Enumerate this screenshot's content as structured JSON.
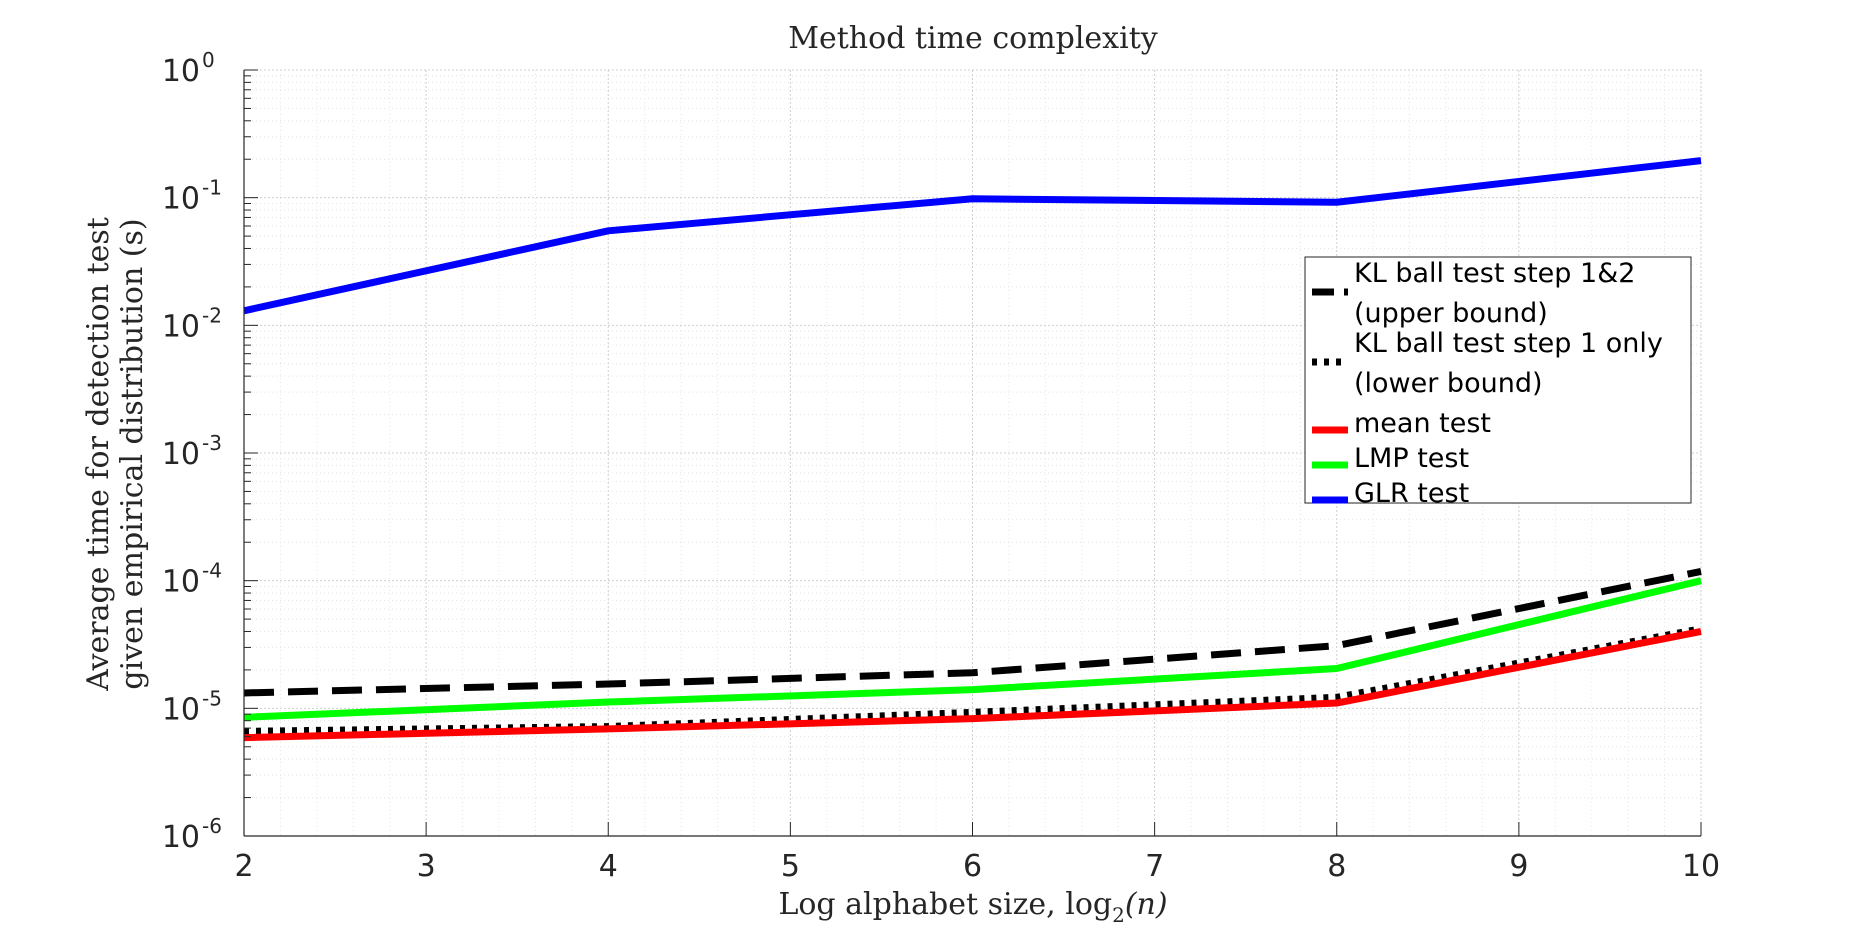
{
  "chart_data": {
    "type": "line",
    "title": "Method time complexity",
    "xlabel_text": "Log alphabet size, log",
    "xlabel_sub": "2",
    "xlabel_arg": "(n)",
    "ylabel_line1": "Average time for detection test",
    "ylabel_line2": "given empirical distribution (s)",
    "x_ticks": [
      "2",
      "3",
      "4",
      "5",
      "6",
      "7",
      "8",
      "9",
      "10"
    ],
    "y_ticks": [
      {
        "base": "10",
        "exp": "-6"
      },
      {
        "base": "10",
        "exp": "-5"
      },
      {
        "base": "10",
        "exp": "-4"
      },
      {
        "base": "10",
        "exp": "-3"
      },
      {
        "base": "10",
        "exp": "-2"
      },
      {
        "base": "10",
        "exp": "-1"
      },
      {
        "base": "10",
        "exp": "0"
      }
    ],
    "xlim": [
      2,
      10
    ],
    "ylim": [
      1e-06,
      1
    ],
    "yscale": "log",
    "grid": true,
    "minor_grid": true,
    "legend_position": "right",
    "x": [
      2,
      4,
      6,
      8,
      10
    ],
    "series": [
      {
        "name_line1": "KL ball test step 1&2",
        "name_line2": "(upper bound)",
        "color": "#000000",
        "style": "dashed",
        "values": [
          1.32e-05,
          1.55e-05,
          1.9e-05,
          3.1e-05,
          0.000118
        ]
      },
      {
        "name_line1": "KL ball test step 1 only",
        "name_line2": "(lower bound)",
        "color": "#000000",
        "style": "dotted",
        "values": [
          6.6e-06,
          7.2e-06,
          9.3e-06,
          1.22e-05,
          4.2e-05
        ]
      },
      {
        "name_line1": "mean test",
        "name_line2": "",
        "color": "#ff0000",
        "style": "solid",
        "values": [
          5.9e-06,
          6.9e-06,
          8.3e-06,
          1.1e-05,
          4e-05
        ]
      },
      {
        "name_line1": "LMP test",
        "name_line2": "",
        "color": "#00ff00",
        "style": "solid",
        "values": [
          8.5e-06,
          1.12e-05,
          1.4e-05,
          2.05e-05,
          0.0001
        ]
      },
      {
        "name_line1": "GLR test",
        "name_line2": "",
        "color": "#0000ff",
        "style": "solid",
        "values": [
          0.013,
          0.055,
          0.098,
          0.092,
          0.195
        ]
      }
    ]
  }
}
